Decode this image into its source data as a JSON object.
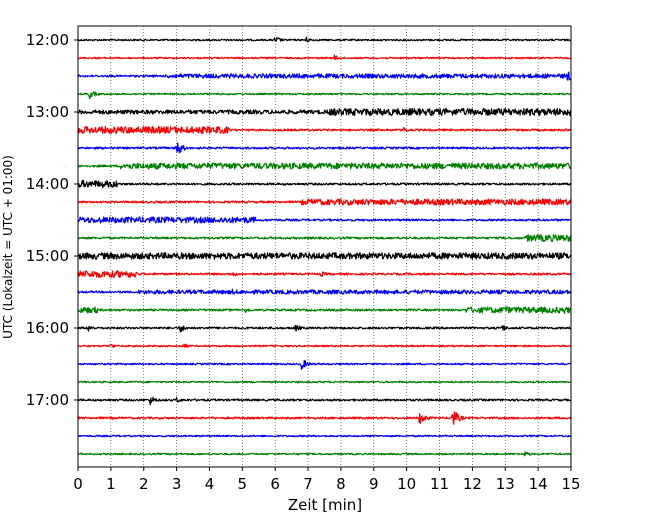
{
  "chart_data": {
    "type": "line",
    "title": "",
    "xlabel": "Zeit  [min]",
    "ylabel": "UTC (Lokalzeit = UTC + 01:00)",
    "xlim": [
      0,
      15
    ],
    "x_ticks": [
      0,
      1,
      2,
      3,
      4,
      5,
      6,
      7,
      8,
      9,
      10,
      11,
      12,
      13,
      14,
      15
    ],
    "x_tick_labels": [
      "0",
      "1",
      "2",
      "3",
      "4",
      "5",
      "6",
      "7",
      "8",
      "9",
      "10",
      "11",
      "12",
      "13",
      "14",
      "15"
    ],
    "hour_labels": [
      "12:00",
      "13:00",
      "14:00",
      "15:00",
      "16:00",
      "17:00"
    ],
    "row_interval_min": 15,
    "grid": {
      "x": true,
      "style": "dotted"
    },
    "colors": [
      "#000000",
      "#ff0000",
      "#0000ff",
      "#008000"
    ],
    "rows": [
      {
        "start": "12:00",
        "color": "#000000",
        "base": 0.8,
        "segments": [],
        "events": [
          {
            "x": 6.0,
            "amp": 4
          },
          {
            "x": 6.9,
            "amp": 4
          }
        ]
      },
      {
        "start": "12:15",
        "color": "#ff0000",
        "base": 0.8,
        "segments": [],
        "events": [
          {
            "x": 7.8,
            "amp": 3
          }
        ]
      },
      {
        "start": "12:30",
        "color": "#0000ff",
        "base": 1.0,
        "segments": [
          {
            "from": 2.7,
            "to": 15,
            "amp": 2.2
          }
        ],
        "events": [
          {
            "x": 14.9,
            "amp": 6
          }
        ]
      },
      {
        "start": "12:45",
        "color": "#008000",
        "base": 0.8,
        "segments": [],
        "events": [
          {
            "x": 0.35,
            "amp": 5
          }
        ]
      },
      {
        "start": "13:00",
        "color": "#000000",
        "base": 1.0,
        "segments": [
          {
            "from": 0,
            "to": 7.6,
            "amp": 2
          },
          {
            "from": 7.6,
            "to": 15,
            "amp": 3.5
          }
        ],
        "events": []
      },
      {
        "start": "13:15",
        "color": "#ff0000",
        "base": 1.0,
        "segments": [
          {
            "from": 0,
            "to": 4.6,
            "amp": 3.5
          }
        ],
        "events": [
          {
            "x": 9.9,
            "amp": 3
          }
        ]
      },
      {
        "start": "13:30",
        "color": "#0000ff",
        "base": 1.0,
        "segments": [],
        "events": [
          {
            "x": 3.0,
            "amp": 9
          }
        ]
      },
      {
        "start": "13:45",
        "color": "#008000",
        "base": 1.0,
        "segments": [
          {
            "from": 1.3,
            "to": 15,
            "amp": 3
          }
        ],
        "events": []
      },
      {
        "start": "14:00",
        "color": "#000000",
        "base": 1.0,
        "segments": [
          {
            "from": 0,
            "to": 1.2,
            "amp": 3.5
          }
        ],
        "events": []
      },
      {
        "start": "14:15",
        "color": "#ff0000",
        "base": 1.0,
        "segments": [
          {
            "from": 6.8,
            "to": 15,
            "amp": 3
          }
        ],
        "events": []
      },
      {
        "start": "14:30",
        "color": "#0000ff",
        "base": 1.0,
        "segments": [
          {
            "from": 0,
            "to": 5.4,
            "amp": 3
          }
        ],
        "events": []
      },
      {
        "start": "14:45",
        "color": "#008000",
        "base": 1.0,
        "segments": [
          {
            "from": 13.6,
            "to": 15,
            "amp": 3.5
          }
        ],
        "events": []
      },
      {
        "start": "15:00",
        "color": "#000000",
        "base": 1.3,
        "segments": [
          {
            "from": 0,
            "to": 15,
            "amp": 3.2
          }
        ],
        "events": []
      },
      {
        "start": "15:15",
        "color": "#ff0000",
        "base": 1.0,
        "segments": [
          {
            "from": 0,
            "to": 1.8,
            "amp": 3.5
          }
        ],
        "events": [
          {
            "x": 4.7,
            "amp": 3
          },
          {
            "x": 7.4,
            "amp": 3
          }
        ]
      },
      {
        "start": "15:30",
        "color": "#0000ff",
        "base": 1.0,
        "segments": [
          {
            "from": 1.8,
            "to": 15,
            "amp": 2
          }
        ],
        "events": [
          {
            "x": 4.7,
            "amp": 3
          }
        ]
      },
      {
        "start": "15:45",
        "color": "#008000",
        "base": 1.0,
        "segments": [
          {
            "from": 0,
            "to": 0.6,
            "amp": 3
          },
          {
            "from": 11.8,
            "to": 15,
            "amp": 3
          }
        ],
        "events": [
          {
            "x": 5.1,
            "amp": 3
          },
          {
            "x": 13.0,
            "amp": 5
          },
          {
            "x": 14.8,
            "amp": 4
          }
        ]
      },
      {
        "start": "16:00",
        "color": "#000000",
        "base": 1.0,
        "segments": [],
        "events": [
          {
            "x": 0.3,
            "amp": 4
          },
          {
            "x": 3.1,
            "amp": 5
          },
          {
            "x": 6.6,
            "amp": 4
          },
          {
            "x": 12.9,
            "amp": 4
          }
        ]
      },
      {
        "start": "16:15",
        "color": "#ff0000",
        "base": 0.8,
        "segments": [],
        "events": [
          {
            "x": 1.0,
            "amp": 3
          },
          {
            "x": 3.2,
            "amp": 3
          }
        ]
      },
      {
        "start": "16:30",
        "color": "#0000ff",
        "base": 0.8,
        "segments": [],
        "events": [
          {
            "x": 6.8,
            "amp": 6
          }
        ]
      },
      {
        "start": "16:45",
        "color": "#008000",
        "base": 0.8,
        "segments": [],
        "events": []
      },
      {
        "start": "17:00",
        "color": "#000000",
        "base": 1.0,
        "segments": [],
        "events": [
          {
            "x": 2.2,
            "amp": 5
          },
          {
            "x": 3.0,
            "amp": 3
          }
        ]
      },
      {
        "start": "17:15",
        "color": "#ff0000",
        "base": 1.0,
        "segments": [],
        "events": [
          {
            "x": 10.4,
            "amp": 7
          },
          {
            "x": 11.4,
            "amp": 10
          }
        ]
      },
      {
        "start": "17:30",
        "color": "#0000ff",
        "base": 0.8,
        "segments": [],
        "events": []
      },
      {
        "start": "17:45",
        "color": "#008000",
        "base": 0.8,
        "segments": [],
        "events": [
          {
            "x": 13.6,
            "amp": 3
          }
        ]
      }
    ]
  }
}
